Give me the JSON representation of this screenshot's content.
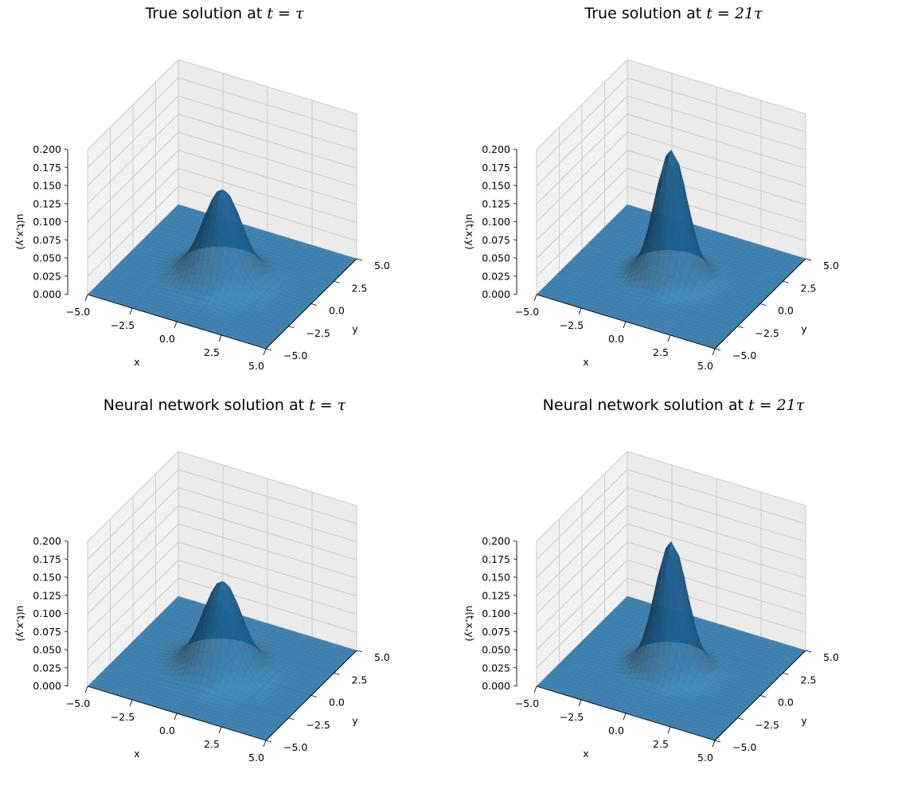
{
  "chart_data": [
    {
      "type": "surface3d",
      "title_prefix": "True solution at ",
      "title_math": "t = τ",
      "xlabel": "x",
      "ylabel": "y",
      "zlabel": "u(t,x,y)",
      "xlim": [
        -5,
        5
      ],
      "ylim": [
        -5,
        5
      ],
      "zlim": [
        0,
        0.2
      ],
      "x_ticks": [
        "−5.0",
        "−2.5",
        "0.0",
        "2.5",
        "5.0"
      ],
      "y_ticks": [
        "−5.0",
        "−2.5",
        "0.0",
        "2.5",
        "5.0"
      ],
      "z_ticks": [
        "0.000",
        "0.025",
        "0.050",
        "0.075",
        "0.100",
        "0.125",
        "0.150",
        "0.175",
        "0.200"
      ],
      "peak_value": 0.12,
      "peak_width": 1.0,
      "surface_color": "#1f77b4"
    },
    {
      "type": "surface3d",
      "title_prefix": "True solution at ",
      "title_math": "t = 21τ",
      "xlabel": "x",
      "ylabel": "y",
      "zlabel": "u(t,x,y)",
      "xlim": [
        -5,
        5
      ],
      "ylim": [
        -5,
        5
      ],
      "zlim": [
        0,
        0.2
      ],
      "x_ticks": [
        "−5.0",
        "−2.5",
        "0.0",
        "2.5",
        "5.0"
      ],
      "y_ticks": [
        "−5.0",
        "−2.5",
        "0.0",
        "2.5",
        "5.0"
      ],
      "z_ticks": [
        "0.000",
        "0.025",
        "0.050",
        "0.075",
        "0.100",
        "0.125",
        "0.150",
        "0.175",
        "0.200"
      ],
      "peak_value": 0.175,
      "peak_width": 0.82,
      "surface_color": "#1f77b4"
    },
    {
      "type": "surface3d",
      "title_prefix": "Neural network solution at ",
      "title_math": "t = τ",
      "xlabel": "x",
      "ylabel": "y",
      "zlabel": "u(t,x,y)",
      "xlim": [
        -5,
        5
      ],
      "ylim": [
        -5,
        5
      ],
      "zlim": [
        0,
        0.2
      ],
      "x_ticks": [
        "−5.0",
        "−2.5",
        "0.0",
        "2.5",
        "5.0"
      ],
      "y_ticks": [
        "−5.0",
        "−2.5",
        "0.0",
        "2.5",
        "5.0"
      ],
      "z_ticks": [
        "0.000",
        "0.025",
        "0.050",
        "0.075",
        "0.100",
        "0.125",
        "0.150",
        "0.175",
        "0.200"
      ],
      "peak_value": 0.12,
      "peak_width": 1.0,
      "surface_color": "#1f77b4"
    },
    {
      "type": "surface3d",
      "title_prefix": "Neural network solution at ",
      "title_math": "t = 21τ",
      "xlabel": "x",
      "ylabel": "y",
      "zlabel": "u(t,x,y)",
      "xlim": [
        -5,
        5
      ],
      "ylim": [
        -5,
        5
      ],
      "zlim": [
        0,
        0.2
      ],
      "x_ticks": [
        "−5.0",
        "−2.5",
        "0.0",
        "2.5",
        "5.0"
      ],
      "y_ticks": [
        "−5.0",
        "−2.5",
        "0.0",
        "2.5",
        "5.0"
      ],
      "z_ticks": [
        "0.000",
        "0.025",
        "0.050",
        "0.075",
        "0.100",
        "0.125",
        "0.150",
        "0.175",
        "0.200"
      ],
      "peak_value": 0.175,
      "peak_width": 0.82,
      "surface_color": "#1f77b4"
    }
  ]
}
